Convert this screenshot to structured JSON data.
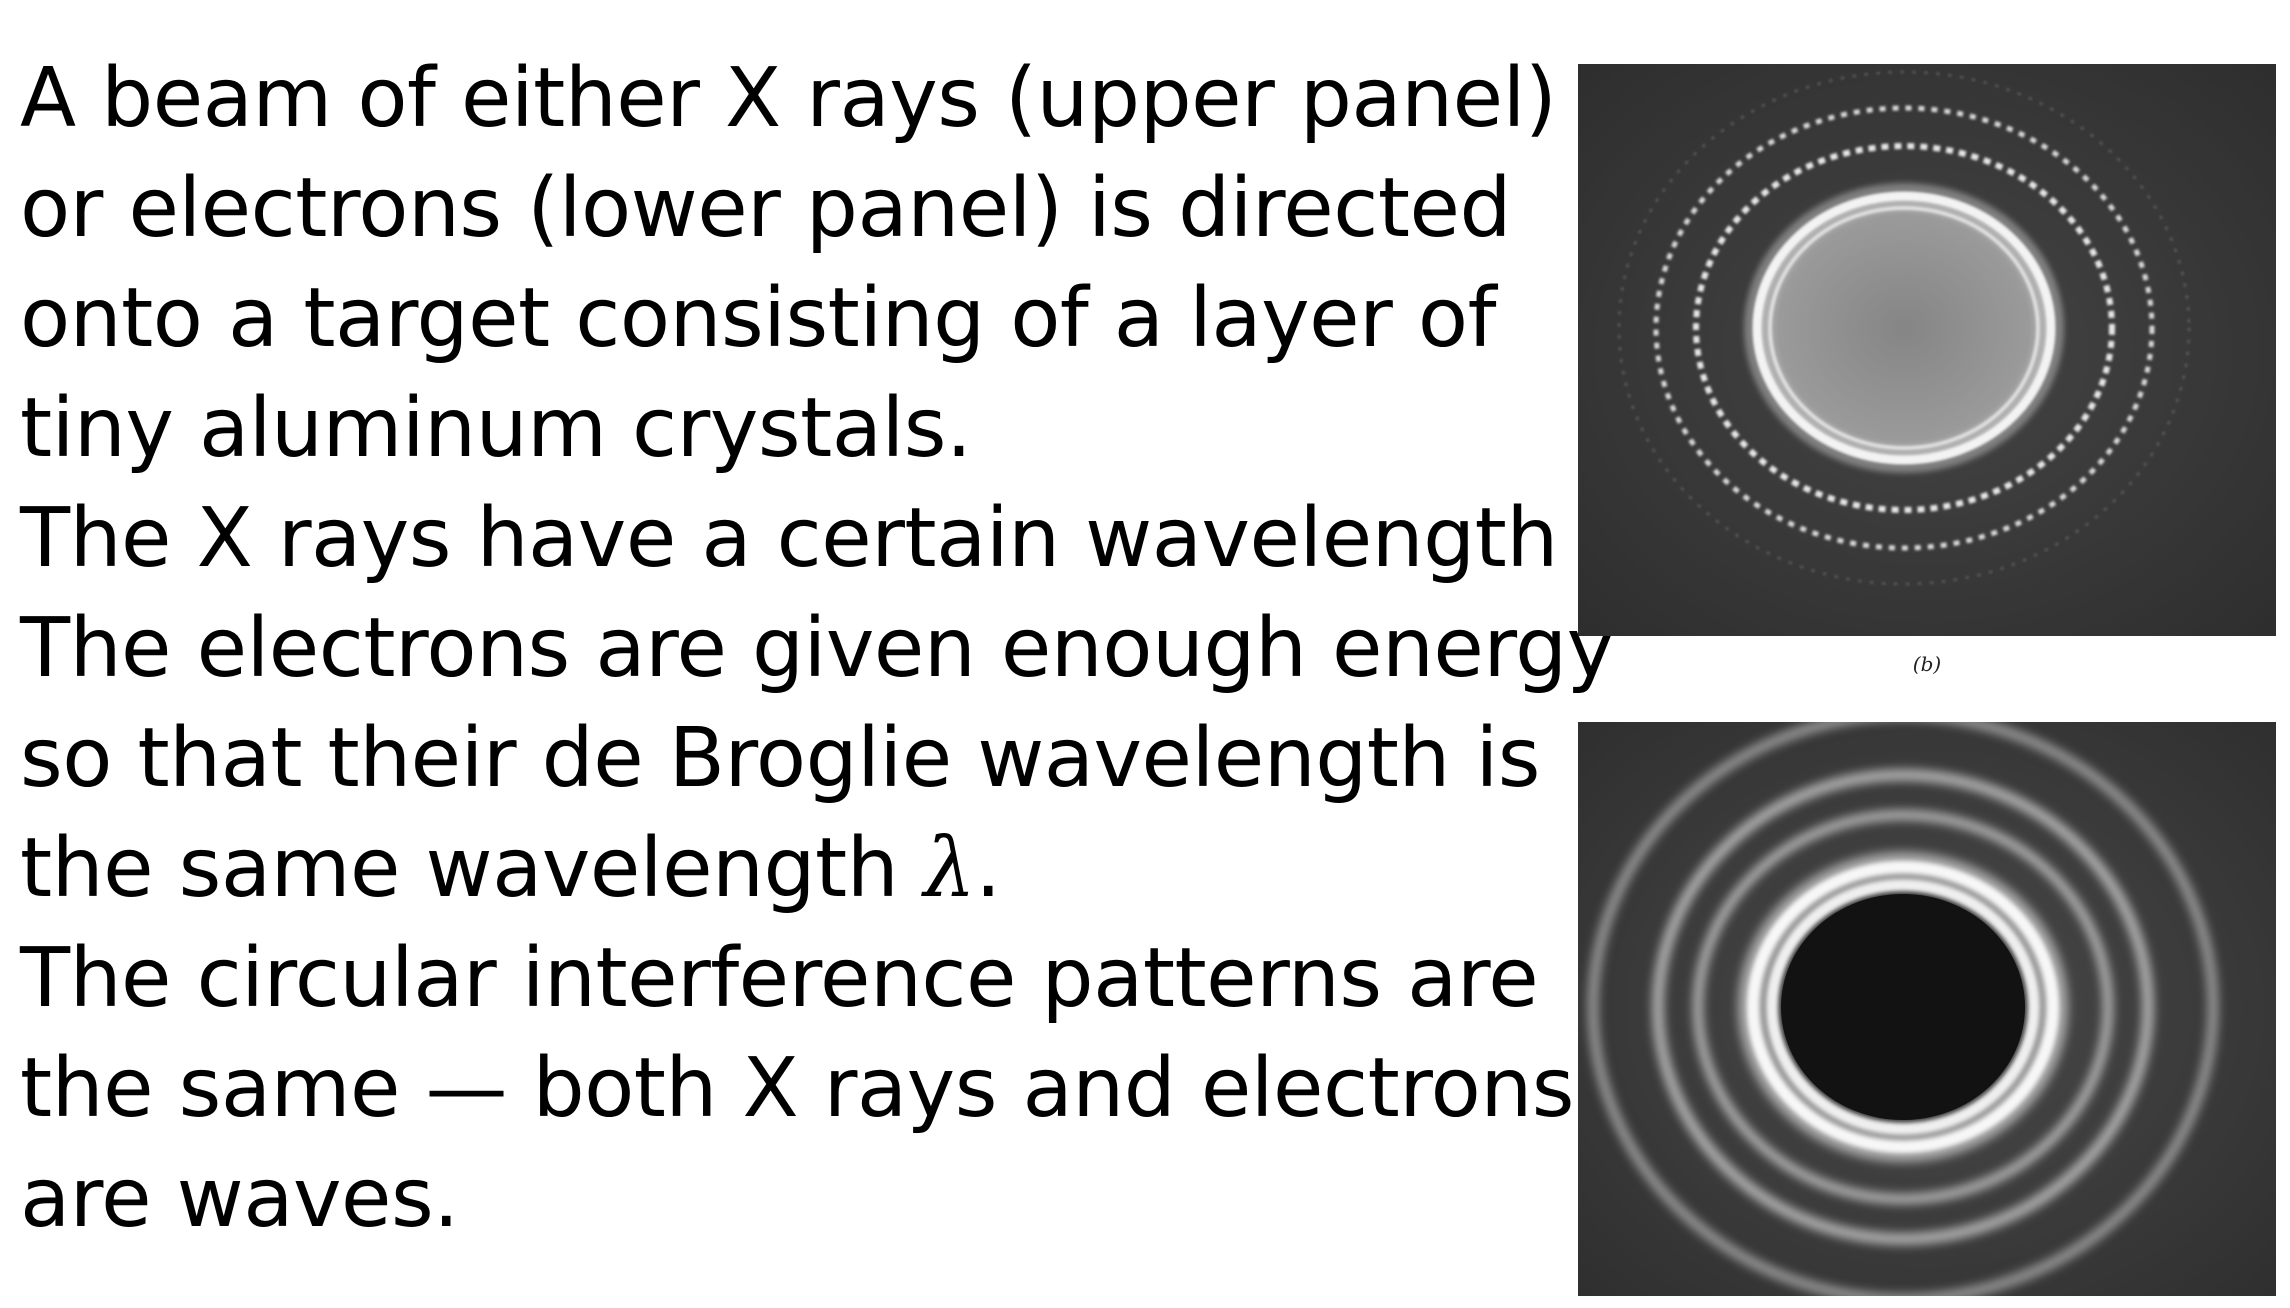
{
  "text": {
    "line1": "A beam of either X rays (upper panel)",
    "line2": "or electrons (lower panel) is directed",
    "line3": "onto a target consisting of a layer of",
    "line4": "tiny aluminum crystals.",
    "line5_pre": "The X rays have a certain wavelength ",
    "line6": "The electrons are given enough energy",
    "line7": "so that their de Broglie wavelength is",
    "line8_pre": "the same wavelength ",
    "line9": "The circular interference patterns are",
    "line10": "the same — both X rays and electrons",
    "line11": "are waves.",
    "lambda": "λ",
    "period": "."
  },
  "figure": {
    "caption": "(b)"
  },
  "colors": {
    "panel_background": "#3a3a3a",
    "ring_light": "#f2f2f2"
  }
}
